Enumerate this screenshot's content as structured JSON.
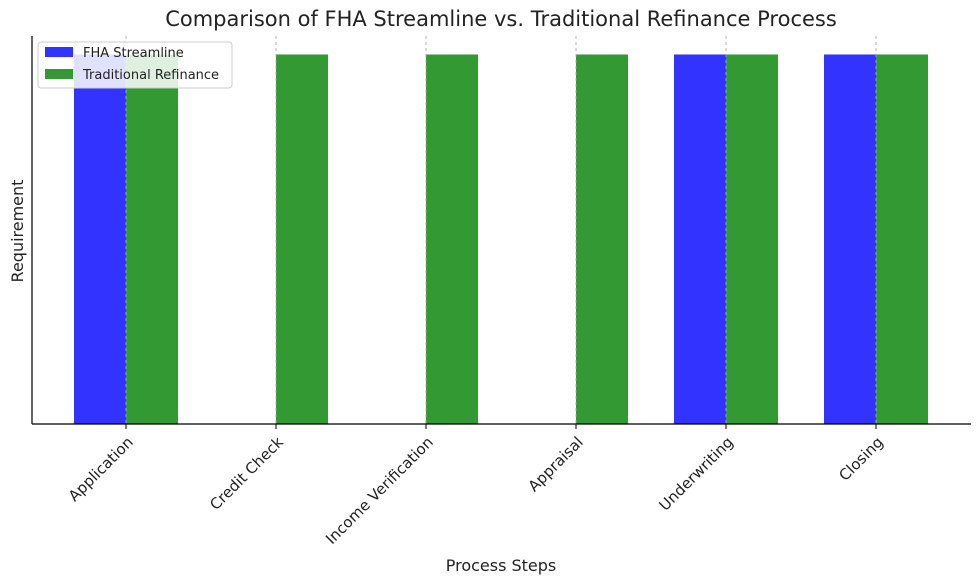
{
  "chart_data": {
    "type": "bar",
    "title": "Comparison of FHA Streamline vs. Traditional Refinance Process",
    "xlabel": "Process Steps",
    "ylabel": "Requirement",
    "categories": [
      "Application",
      "Credit Check",
      "Income Verification",
      "Appraisal",
      "Underwriting",
      "Closing"
    ],
    "series": [
      {
        "name": "FHA Streamline",
        "values": [
          1,
          0,
          0,
          0,
          1,
          1
        ],
        "color": "#3333ff"
      },
      {
        "name": "Traditional Refinance",
        "values": [
          1,
          1,
          1,
          1,
          1,
          1
        ],
        "color": "#339933"
      }
    ],
    "ylim": [
      0,
      1.05
    ],
    "grid": "vertical dashed",
    "legend": "top-left",
    "y_ticks_shown": false
  }
}
